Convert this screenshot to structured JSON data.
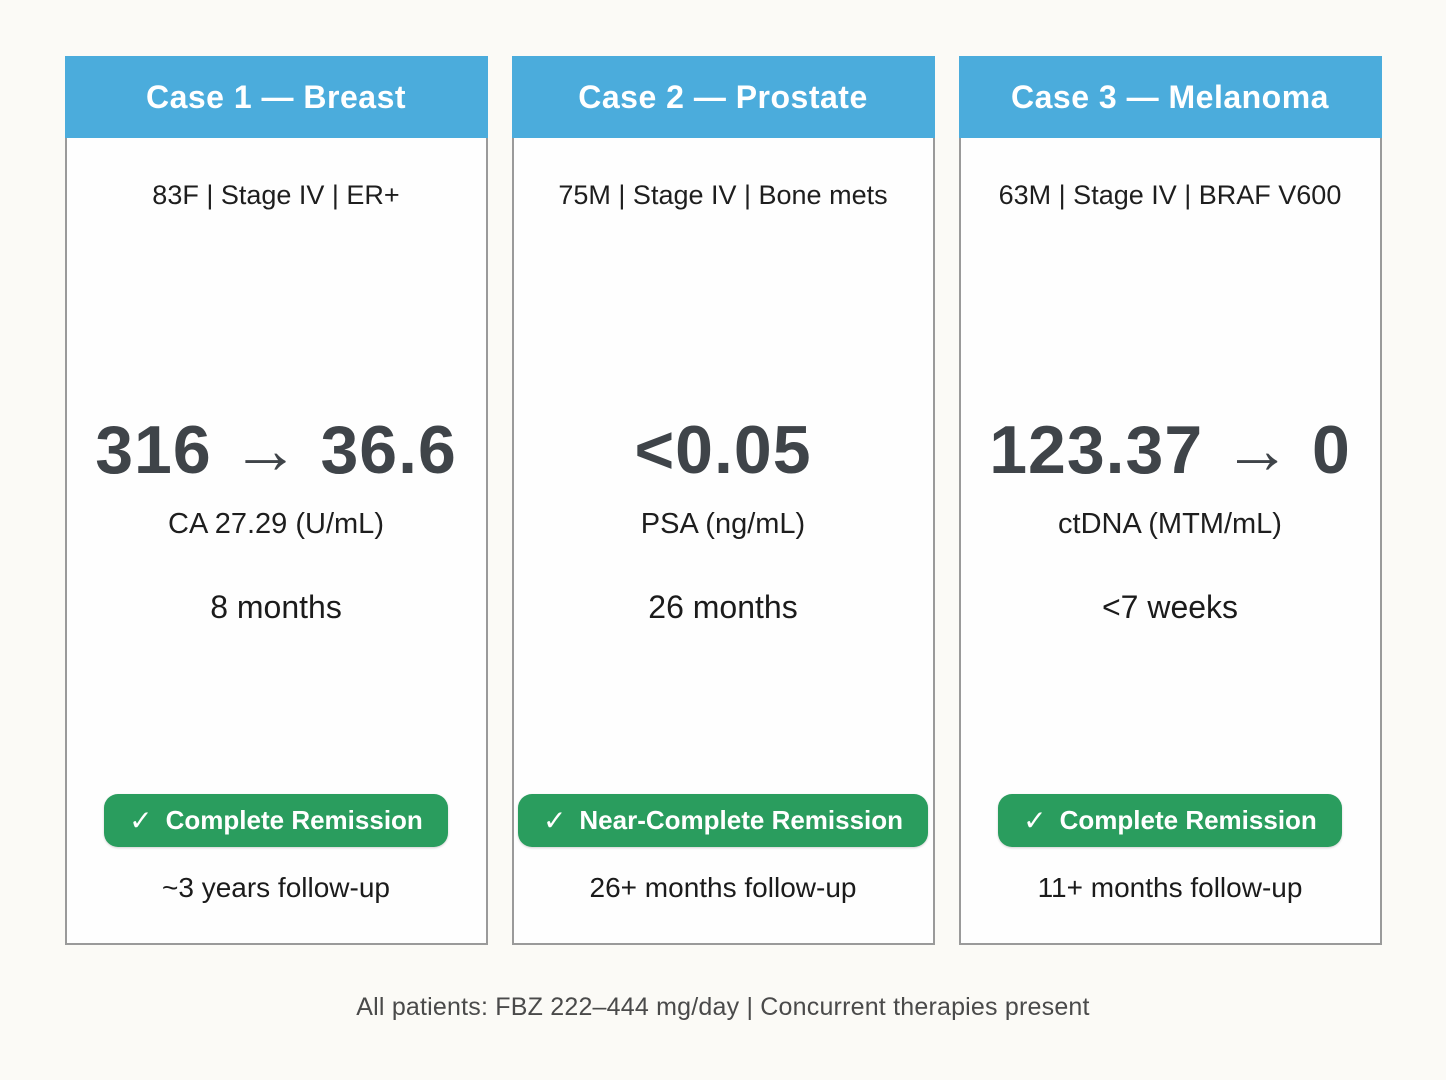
{
  "colors": {
    "header_blue": "#4bacdc",
    "badge_green": "#2a9d5e",
    "value_gray": "#3f4449",
    "border_gray": "#9a9a9a",
    "page_bg": "#fbfaf6"
  },
  "icons": {
    "check": "✓"
  },
  "cases": [
    {
      "title": "Case 1 — Breast",
      "patient": "83F | Stage IV | ER+",
      "value": "316 → 36.6",
      "metric": "CA 27.29 (U/mL)",
      "duration": "8 months",
      "badge": "Complete Remission",
      "followup": "~3 years follow-up"
    },
    {
      "title": "Case 2 — Prostate",
      "patient": "75M | Stage IV | Bone mets",
      "value": "<0.05",
      "metric": "PSA (ng/mL)",
      "duration": "26 months",
      "badge": "Near-Complete Remission",
      "followup": "26+ months follow-up"
    },
    {
      "title": "Case 3 — Melanoma",
      "patient": "63M | Stage IV | BRAF V600",
      "value": "123.37 → 0",
      "metric": "ctDNA (MTM/mL)",
      "duration": "<7 weeks",
      "badge": "Complete Remission",
      "followup": "11+ months follow-up"
    }
  ],
  "page": {
    "footer": "All patients: FBZ 222–444 mg/day | Concurrent therapies present"
  }
}
